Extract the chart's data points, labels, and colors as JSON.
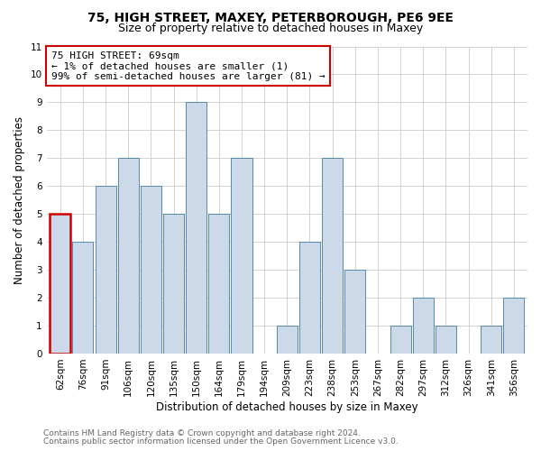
{
  "title": "75, HIGH STREET, MAXEY, PETERBOROUGH, PE6 9EE",
  "subtitle": "Size of property relative to detached houses in Maxey",
  "xlabel": "Distribution of detached houses by size in Maxey",
  "ylabel": "Number of detached properties",
  "footer1": "Contains HM Land Registry data © Crown copyright and database right 2024.",
  "footer2": "Contains public sector information licensed under the Open Government Licence v3.0.",
  "categories": [
    "62sqm",
    "76sqm",
    "91sqm",
    "106sqm",
    "120sqm",
    "135sqm",
    "150sqm",
    "164sqm",
    "179sqm",
    "194sqm",
    "209sqm",
    "223sqm",
    "238sqm",
    "253sqm",
    "267sqm",
    "282sqm",
    "297sqm",
    "312sqm",
    "326sqm",
    "341sqm",
    "356sqm"
  ],
  "values": [
    5,
    4,
    6,
    7,
    6,
    5,
    9,
    5,
    7,
    0,
    1,
    4,
    7,
    3,
    0,
    1,
    2,
    1,
    0,
    1,
    2
  ],
  "bar_color": "#ccd9e8",
  "bar_edge_color": "#5588aa",
  "highlight_bar_index": 0,
  "highlight_bar_edge_color": "#cc0000",
  "annotation_box_text": "75 HIGH STREET: 69sqm\n← 1% of detached houses are smaller (1)\n99% of semi-detached houses are larger (81) →",
  "annotation_box_edge_color": "#cc0000",
  "ylim": [
    0,
    11
  ],
  "yticks": [
    0,
    1,
    2,
    3,
    4,
    5,
    6,
    7,
    8,
    9,
    10,
    11
  ],
  "background_color": "#ffffff",
  "plot_background": "#ffffff",
  "grid_color": "#cccccc",
  "title_fontsize": 10,
  "subtitle_fontsize": 9,
  "axis_label_fontsize": 8.5,
  "tick_fontsize": 7.5,
  "annotation_fontsize": 8,
  "footer_fontsize": 6.5
}
